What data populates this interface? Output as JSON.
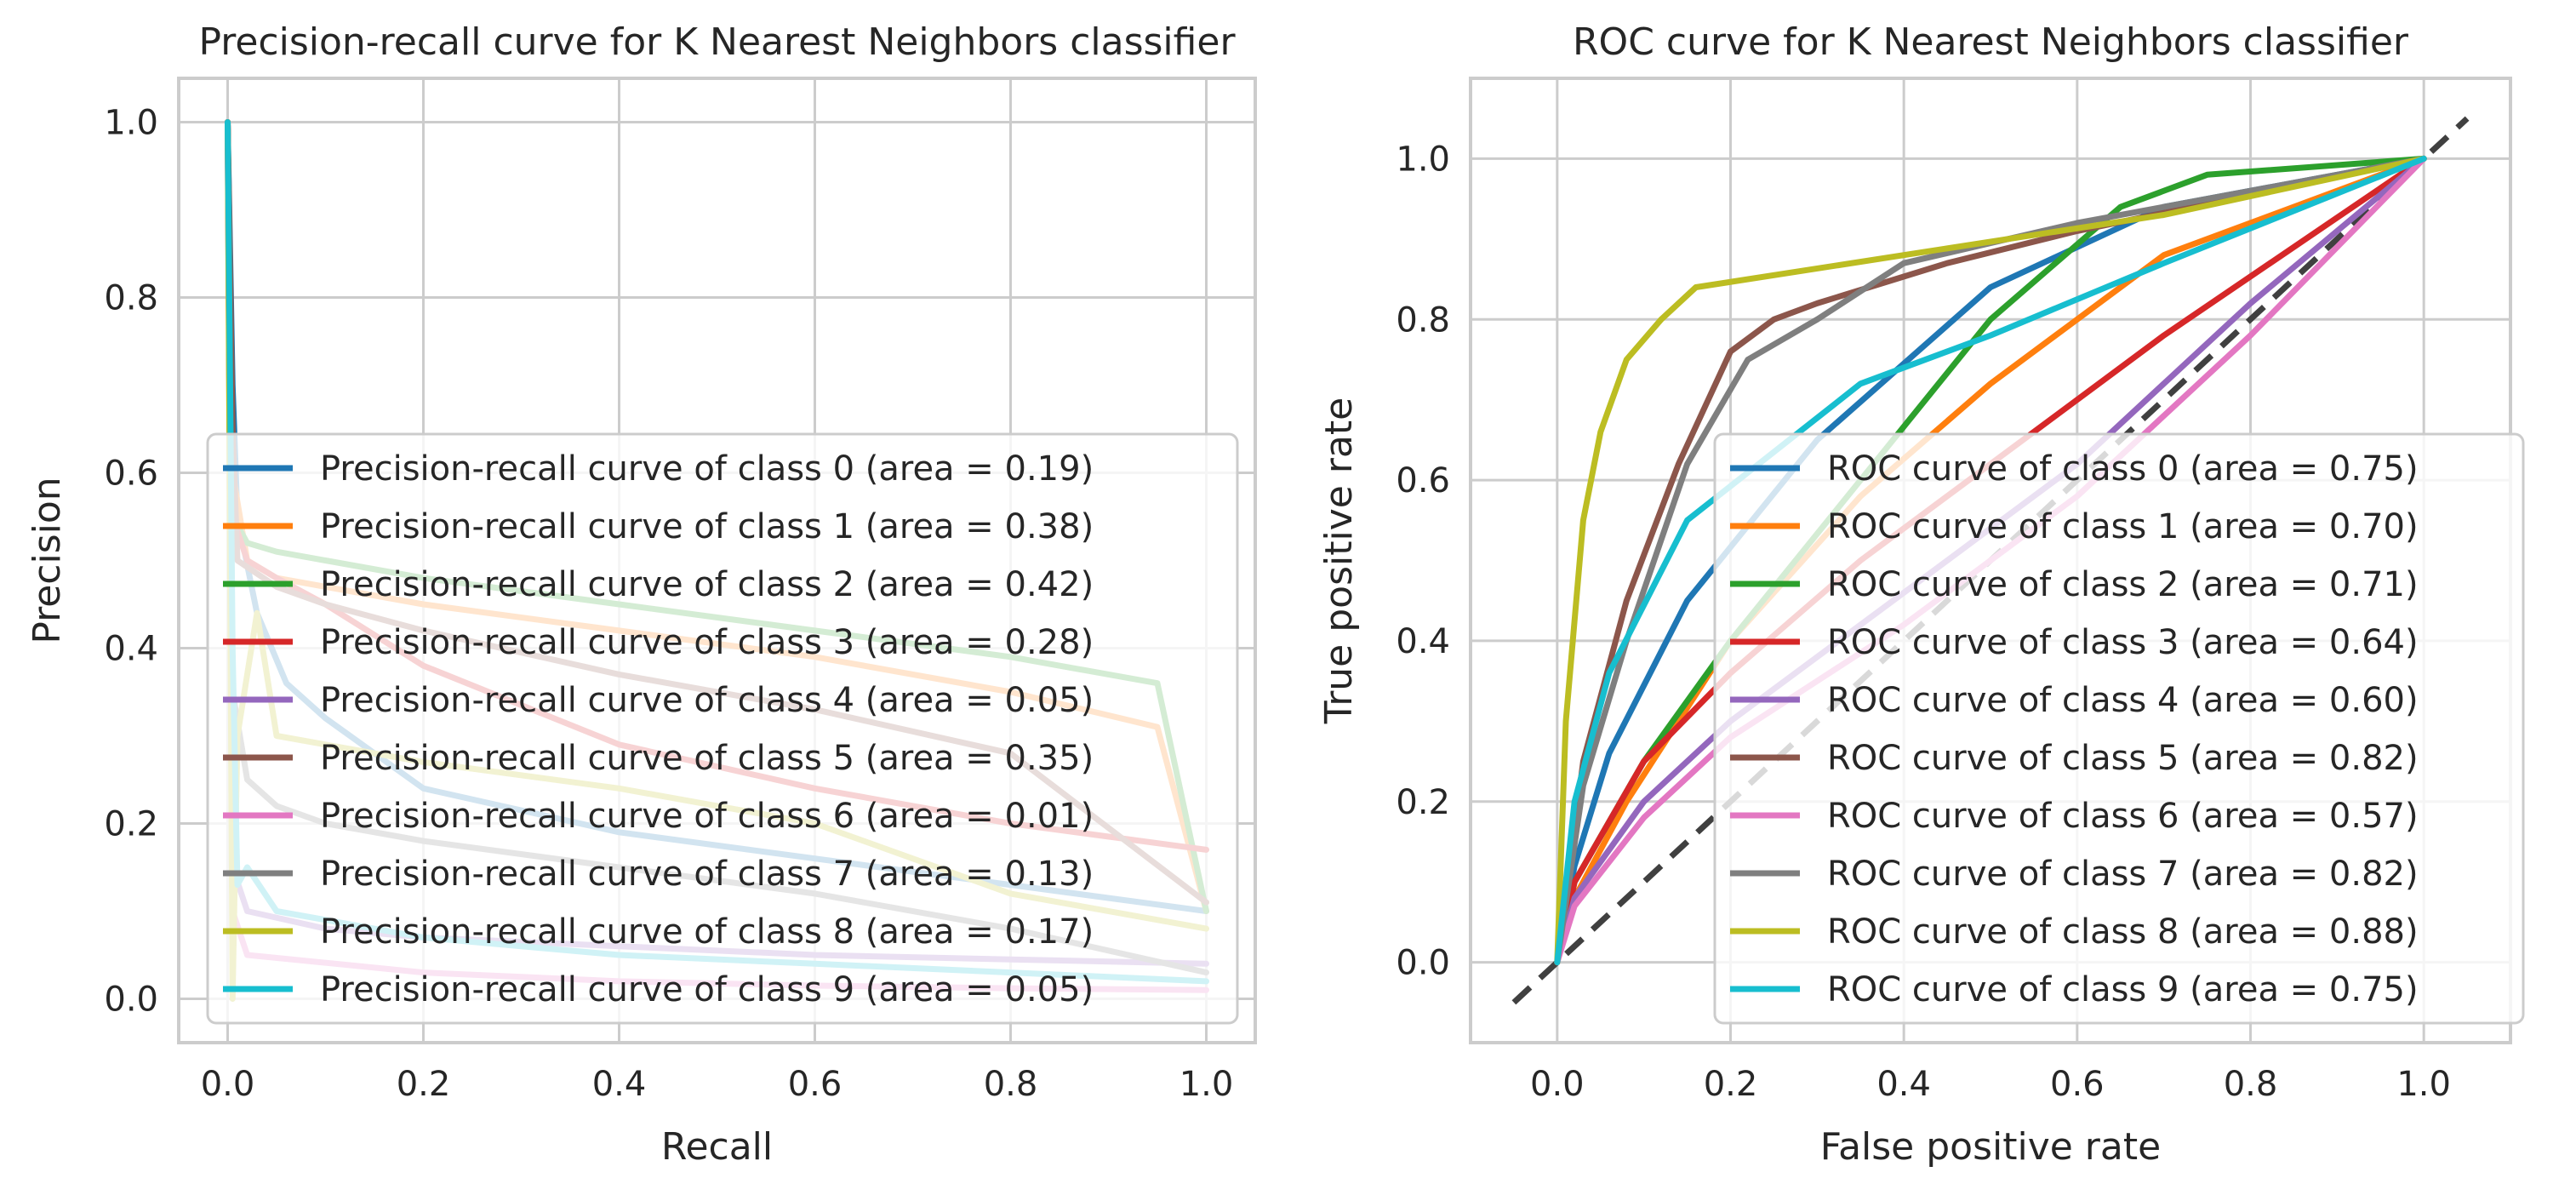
{
  "chart_data": [
    {
      "type": "line",
      "title": "Precision-recall curve for K Nearest Neighbors classifier",
      "xlabel": "Recall",
      "ylabel": "Precision",
      "xlim": [
        -0.05,
        1.05
      ],
      "ylim": [
        -0.05,
        1.05
      ],
      "xticks": [
        "0.0",
        "0.2",
        "0.4",
        "0.6",
        "0.8",
        "1.0"
      ],
      "yticks": [
        "0.0",
        "0.2",
        "0.4",
        "0.6",
        "0.8",
        "1.0"
      ],
      "grid": true,
      "legend_position": "lower-right",
      "series": [
        {
          "name": "Precision-recall curve of class 0 (area = 0.19)",
          "color": "#1f77b4",
          "x": [
            0,
            0.005,
            0.01,
            0.03,
            0.06,
            0.1,
            0.2,
            0.4,
            0.6,
            0.8,
            1.0
          ],
          "y": [
            1.0,
            0.7,
            0.55,
            0.44,
            0.36,
            0.32,
            0.24,
            0.19,
            0.16,
            0.13,
            0.1
          ]
        },
        {
          "name": "Precision-recall curve of class 1 (area = 0.38)",
          "color": "#ff7f0e",
          "x": [
            0,
            0.005,
            0.02,
            0.05,
            0.1,
            0.2,
            0.4,
            0.6,
            0.8,
            0.95,
            1.0
          ],
          "y": [
            1.0,
            0.6,
            0.5,
            0.48,
            0.47,
            0.45,
            0.42,
            0.39,
            0.35,
            0.31,
            0.1
          ]
        },
        {
          "name": "Precision-recall curve of class 2 (area = 0.42)",
          "color": "#2ca02c",
          "x": [
            0,
            0.005,
            0.02,
            0.05,
            0.1,
            0.2,
            0.4,
            0.6,
            0.8,
            0.95,
            1.0
          ],
          "y": [
            1.0,
            0.55,
            0.52,
            0.51,
            0.5,
            0.48,
            0.45,
            0.42,
            0.39,
            0.36,
            0.1
          ]
        },
        {
          "name": "Precision-recall curve of class 3 (area = 0.28)",
          "color": "#d62728",
          "x": [
            0,
            0.005,
            0.02,
            0.05,
            0.1,
            0.2,
            0.4,
            0.6,
            0.8,
            1.0
          ],
          "y": [
            1.0,
            0.55,
            0.5,
            0.48,
            0.45,
            0.38,
            0.29,
            0.24,
            0.2,
            0.17
          ]
        },
        {
          "name": "Precision-recall curve of class 4 (area = 0.05)",
          "color": "#9467bd",
          "x": [
            0,
            0.005,
            0.02,
            0.1,
            0.2,
            0.4,
            0.6,
            0.8,
            1.0
          ],
          "y": [
            1.0,
            0.15,
            0.1,
            0.08,
            0.07,
            0.06,
            0.05,
            0.045,
            0.04
          ]
        },
        {
          "name": "Precision-recall curve of class 5 (area = 0.35)",
          "color": "#8c564b",
          "x": [
            0,
            0.005,
            0.01,
            0.05,
            0.1,
            0.2,
            0.4,
            0.6,
            0.8,
            1.0
          ],
          "y": [
            1.0,
            0.65,
            0.5,
            0.47,
            0.45,
            0.42,
            0.37,
            0.33,
            0.28,
            0.11
          ]
        },
        {
          "name": "Precision-recall curve of class 6 (area = 0.01)",
          "color": "#e377c2",
          "x": [
            0,
            0.005,
            0.02,
            0.2,
            0.4,
            0.6,
            0.8,
            1.0
          ],
          "y": [
            1.0,
            0.1,
            0.05,
            0.03,
            0.02,
            0.015,
            0.012,
            0.01
          ]
        },
        {
          "name": "Precision-recall curve of class 7 (area = 0.13)",
          "color": "#7f7f7f",
          "x": [
            0,
            0.005,
            0.02,
            0.05,
            0.1,
            0.2,
            0.4,
            0.6,
            0.8,
            1.0
          ],
          "y": [
            1.0,
            0.35,
            0.25,
            0.22,
            0.2,
            0.18,
            0.15,
            0.12,
            0.08,
            0.03
          ]
        },
        {
          "name": "Precision-recall curve of class 8 (area = 0.17)",
          "color": "#bcbd22",
          "x": [
            0,
            0.005,
            0.01,
            0.03,
            0.05,
            0.1,
            0.2,
            0.4,
            0.6,
            0.8,
            1.0
          ],
          "y": [
            1.0,
            0.0,
            0.3,
            0.44,
            0.3,
            0.29,
            0.27,
            0.24,
            0.2,
            0.12,
            0.08
          ]
        },
        {
          "name": "Precision-recall curve of class 9 (area = 0.05)",
          "color": "#17becf",
          "x": [
            0,
            0.005,
            0.01,
            0.02,
            0.05,
            0.1,
            0.2,
            0.4,
            0.6,
            0.8,
            1.0
          ],
          "y": [
            1.0,
            0.4,
            0.13,
            0.15,
            0.1,
            0.09,
            0.07,
            0.05,
            0.04,
            0.03,
            0.02
          ]
        }
      ]
    },
    {
      "type": "line",
      "title": "ROC curve for K Nearest Neighbors classifier",
      "xlabel": "False positive rate",
      "ylabel": "True positive rate",
      "xlim": [
        -0.1,
        1.1
      ],
      "ylim": [
        -0.1,
        1.1
      ],
      "xticks": [
        "0.0",
        "0.2",
        "0.4",
        "0.6",
        "0.8",
        "1.0"
      ],
      "yticks": [
        "0.0",
        "0.2",
        "0.4",
        "0.6",
        "0.8",
        "1.0"
      ],
      "grid": true,
      "legend_position": "lower-right",
      "series": [
        {
          "name": "ROC curve of class 0 (area = 0.75)",
          "color": "#1f77b4",
          "x": [
            0,
            0.02,
            0.06,
            0.15,
            0.3,
            0.5,
            0.7,
            1.0
          ],
          "y": [
            0,
            0.12,
            0.26,
            0.45,
            0.65,
            0.84,
            0.94,
            1.0
          ]
        },
        {
          "name": "ROC curve of class 1 (area = 0.70)",
          "color": "#ff7f0e",
          "x": [
            0,
            0.02,
            0.08,
            0.2,
            0.35,
            0.5,
            0.7,
            1.0
          ],
          "y": [
            0,
            0.08,
            0.2,
            0.4,
            0.58,
            0.72,
            0.88,
            1.0
          ]
        },
        {
          "name": "ROC curve of class 2 (area = 0.71)",
          "color": "#2ca02c",
          "x": [
            0,
            0.02,
            0.1,
            0.2,
            0.35,
            0.5,
            0.65,
            0.75,
            1.0
          ],
          "y": [
            0,
            0.1,
            0.25,
            0.4,
            0.6,
            0.8,
            0.94,
            0.98,
            1.0
          ]
        },
        {
          "name": "ROC curve of class 3 (area = 0.64)",
          "color": "#d62728",
          "x": [
            0,
            0.02,
            0.1,
            0.2,
            0.35,
            0.5,
            0.7,
            1.0
          ],
          "y": [
            0,
            0.1,
            0.25,
            0.36,
            0.5,
            0.62,
            0.78,
            1.0
          ]
        },
        {
          "name": "ROC curve of class 4 (area = 0.60)",
          "color": "#9467bd",
          "x": [
            0,
            0.02,
            0.1,
            0.2,
            0.4,
            0.6,
            0.8,
            1.0
          ],
          "y": [
            0,
            0.08,
            0.2,
            0.3,
            0.46,
            0.62,
            0.82,
            1.0
          ]
        },
        {
          "name": "ROC curve of class 5 (area = 0.82)",
          "color": "#8c564b",
          "x": [
            0,
            0.03,
            0.08,
            0.14,
            0.2,
            0.25,
            0.3,
            0.45,
            0.6,
            1.0
          ],
          "y": [
            0,
            0.25,
            0.45,
            0.62,
            0.76,
            0.8,
            0.82,
            0.87,
            0.91,
            1.0
          ]
        },
        {
          "name": "ROC curve of class 6 (area = 0.57)",
          "color": "#e377c2",
          "x": [
            0,
            0.02,
            0.1,
            0.2,
            0.4,
            0.6,
            0.8,
            1.0
          ],
          "y": [
            0,
            0.07,
            0.18,
            0.28,
            0.42,
            0.58,
            0.78,
            1.0
          ]
        },
        {
          "name": "ROC curve of class 7 (area = 0.82)",
          "color": "#7f7f7f",
          "x": [
            0,
            0.03,
            0.08,
            0.15,
            0.22,
            0.3,
            0.4,
            0.6,
            1.0
          ],
          "y": [
            0,
            0.22,
            0.4,
            0.62,
            0.75,
            0.8,
            0.87,
            0.92,
            1.0
          ]
        },
        {
          "name": "ROC curve of class 8 (area = 0.88)",
          "color": "#bcbd22",
          "x": [
            0,
            0.01,
            0.03,
            0.05,
            0.08,
            0.12,
            0.16,
            0.4,
            0.7,
            1.0
          ],
          "y": [
            0,
            0.3,
            0.55,
            0.66,
            0.75,
            0.8,
            0.84,
            0.88,
            0.93,
            1.0
          ]
        },
        {
          "name": "ROC curve of class 9 (area = 0.75)",
          "color": "#17becf",
          "x": [
            0,
            0.02,
            0.06,
            0.15,
            0.35,
            0.5,
            0.7,
            1.0
          ],
          "y": [
            0,
            0.2,
            0.36,
            0.55,
            0.72,
            0.78,
            0.87,
            1.0
          ]
        }
      ]
    }
  ]
}
